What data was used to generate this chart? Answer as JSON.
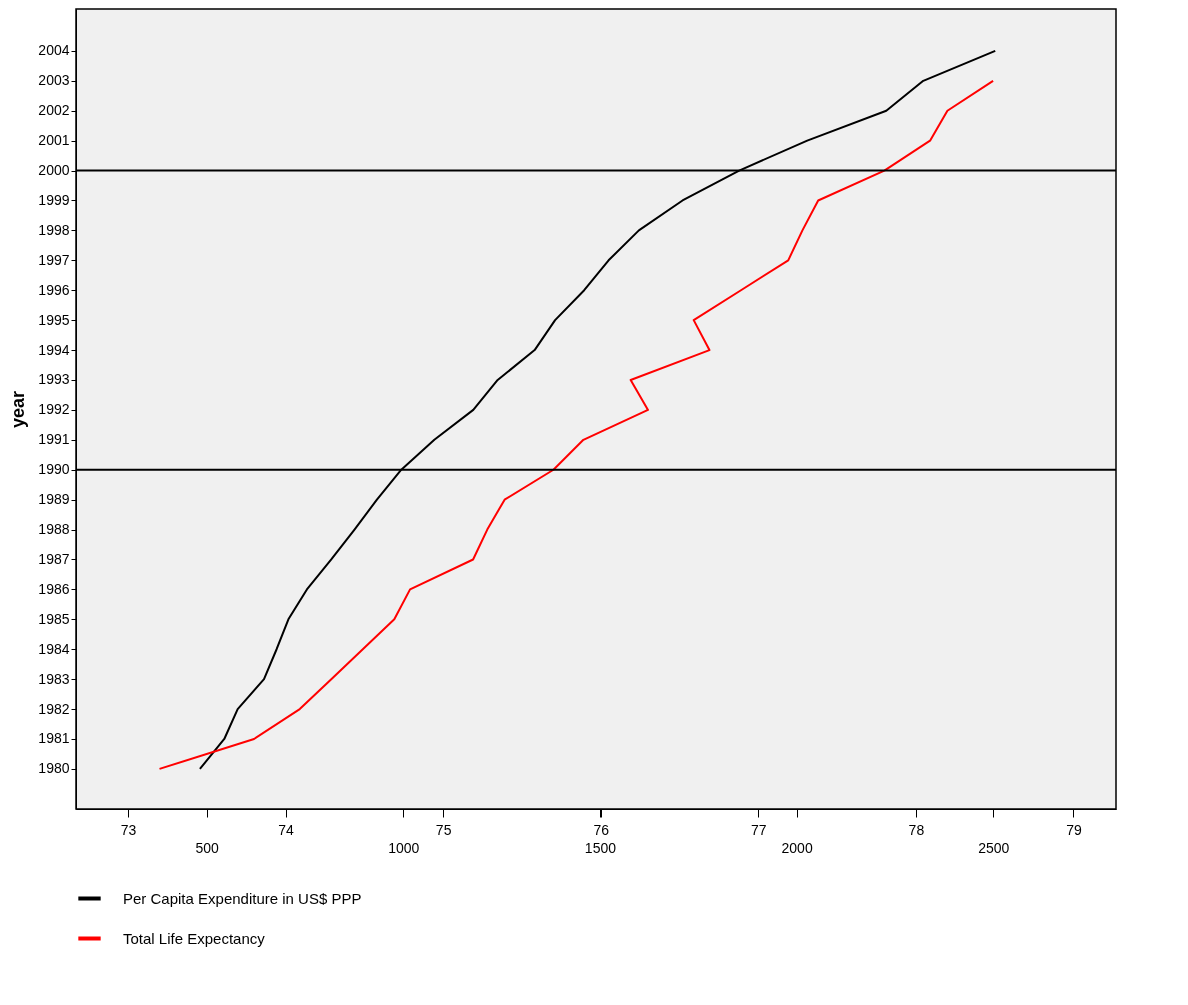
{
  "chart_data": {
    "type": "line",
    "ylabel": "year",
    "xlim": [
      168,
      2812
    ],
    "xticks": [
      500,
      1000,
      1500,
      2000,
      2500
    ],
    "x2lim": [
      72.67,
      79.27
    ],
    "x2ticks": [
      73,
      74,
      75,
      76,
      77,
      78,
      79
    ],
    "ylim": [
      1978.66,
      2005.4
    ],
    "yticks": [
      1980,
      1981,
      1982,
      1983,
      1984,
      1985,
      1986,
      1987,
      1988,
      1989,
      1990,
      1991,
      1992,
      1993,
      1994,
      1995,
      1996,
      1997,
      1998,
      1999,
      2000,
      2001,
      2002,
      2003,
      2004
    ],
    "series": [
      {
        "name": "Per Capita Expenditure in US$ PPP",
        "color": "#000000",
        "x": [
          483,
          545,
          579,
          646,
          678,
          708,
          755,
          817,
          876,
          933,
          995,
          1079,
          1178,
          1240,
          1334,
          1386,
          1460,
          1522,
          1599,
          1710,
          1854,
          2027,
          2228,
          2322,
          2505
        ],
        "values": [
          1980,
          1981,
          1982,
          1983,
          1984,
          1985,
          1986,
          1987,
          1988,
          1989,
          1990,
          1991,
          1992,
          1993,
          1994,
          1995,
          1996,
          1997,
          1998,
          1999,
          2000,
          2001,
          2002,
          2003,
          2004
        ]
      },
      {
        "name": "Total Life Expectancy",
        "color": "#ff0000",
        "axis": "x2",
        "x": [
          73.2,
          73.8,
          74.09,
          74.29,
          74.49,
          74.69,
          74.79,
          75.19,
          75.28,
          75.39,
          75.7,
          75.89,
          76.3,
          76.19,
          76.69,
          76.59,
          76.89,
          77.19,
          77.28,
          77.38,
          77.8,
          78.09,
          78.2,
          78.49
        ],
        "values": [
          1980,
          1981,
          1982,
          1983,
          1984,
          1985,
          1986,
          1987,
          1988,
          1989,
          1990,
          1991,
          1992,
          1993,
          1994,
          1995,
          1996,
          1997,
          1998,
          1999,
          2000,
          2001,
          2002,
          2003
        ]
      }
    ],
    "ref_lines": [
      {
        "axis": "y",
        "value": 1990,
        "color": "#000000"
      },
      {
        "axis": "y",
        "value": 2000,
        "color": "#000000"
      }
    ],
    "grid": false,
    "legend": "bottom",
    "marker": "none",
    "line_style": "solid"
  }
}
